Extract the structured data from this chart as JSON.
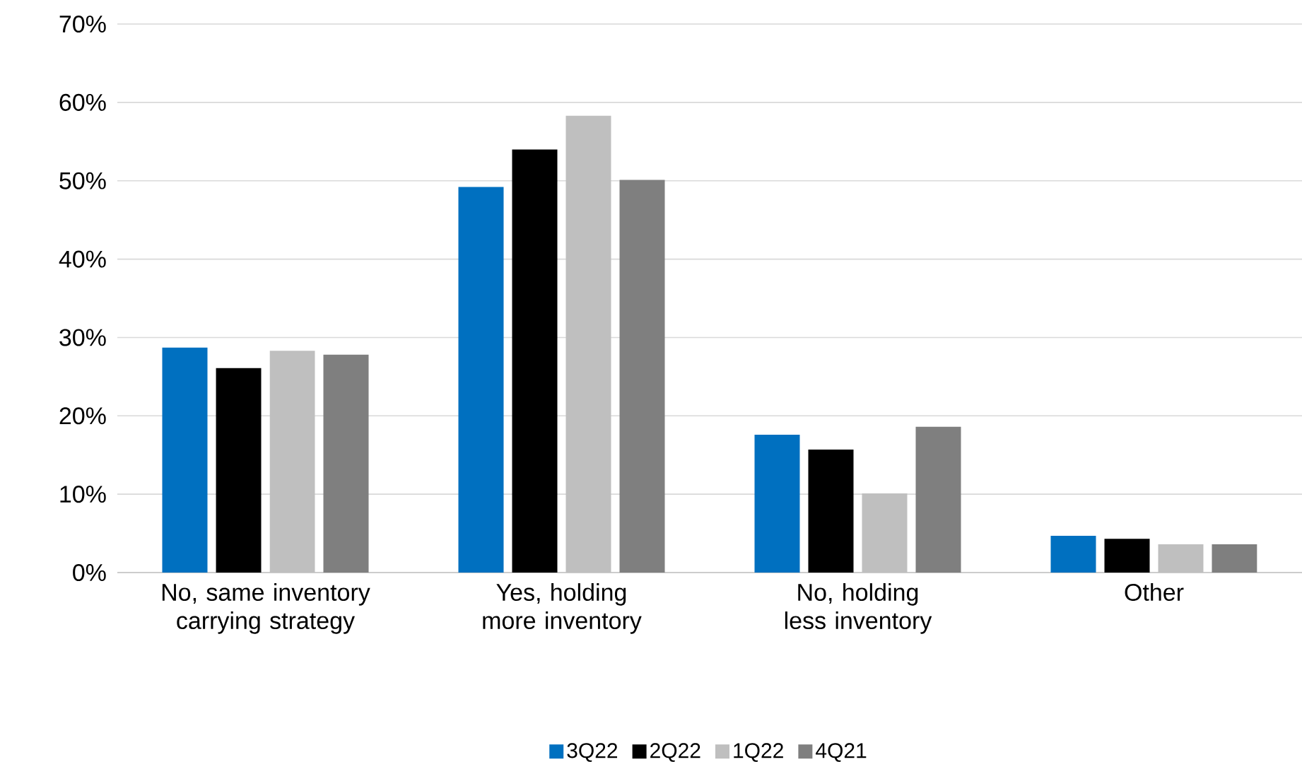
{
  "chart_data": {
    "type": "bar",
    "categories": [
      "No, same inventory carrying strategy",
      "Yes, holding more inventory",
      "No, holding less inventory",
      "Other"
    ],
    "series": [
      {
        "name": "3Q22",
        "color": "#0070c0",
        "values": [
          28.7,
          49.2,
          17.6,
          4.7
        ]
      },
      {
        "name": "2Q22",
        "color": "#000000",
        "values": [
          26.1,
          54.0,
          15.7,
          4.3
        ]
      },
      {
        "name": "1Q22",
        "color": "#bfbfbf",
        "values": [
          28.3,
          58.3,
          10.1,
          3.6
        ]
      },
      {
        "name": "4Q21",
        "color": "#7f7f7f",
        "values": [
          27.8,
          50.1,
          18.6,
          3.6
        ]
      }
    ],
    "ylim": [
      0,
      70
    ],
    "yticks": [
      {
        "value": 0,
        "label": "0%"
      },
      {
        "value": 10,
        "label": "10%"
      },
      {
        "value": 20,
        "label": "20%"
      },
      {
        "value": 30,
        "label": "30%"
      },
      {
        "value": 40,
        "label": "40%"
      },
      {
        "value": 50,
        "label": "50%"
      },
      {
        "value": 60,
        "label": "60%"
      },
      {
        "value": 70,
        "label": "70%"
      }
    ],
    "grid": "y",
    "legend": "bottom"
  }
}
